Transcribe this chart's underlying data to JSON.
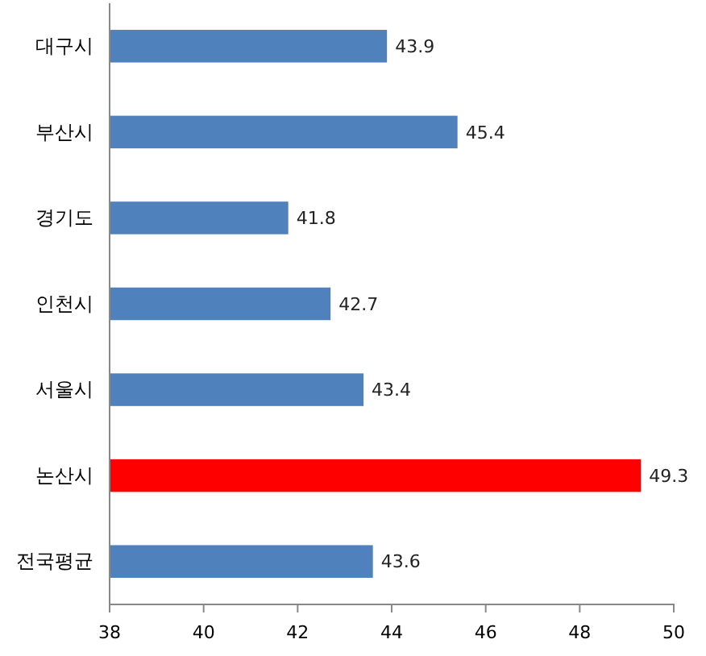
{
  "chart_data": {
    "type": "bar",
    "orientation": "horizontal",
    "categories": [
      "대구시",
      "부산시",
      "경기도",
      "인천시",
      "서울시",
      "논산시",
      "전국평균"
    ],
    "values": [
      43.9,
      45.4,
      41.8,
      42.7,
      43.4,
      49.3,
      43.6
    ],
    "colors": [
      "#4f81bd",
      "#4f81bd",
      "#4f81bd",
      "#4f81bd",
      "#4f81bd",
      "#ff0000",
      "#4f81bd"
    ],
    "xlim": [
      38,
      50
    ],
    "xticks": [
      38,
      40,
      42,
      44,
      46,
      48,
      50
    ],
    "data_labels": true,
    "grid": false
  }
}
